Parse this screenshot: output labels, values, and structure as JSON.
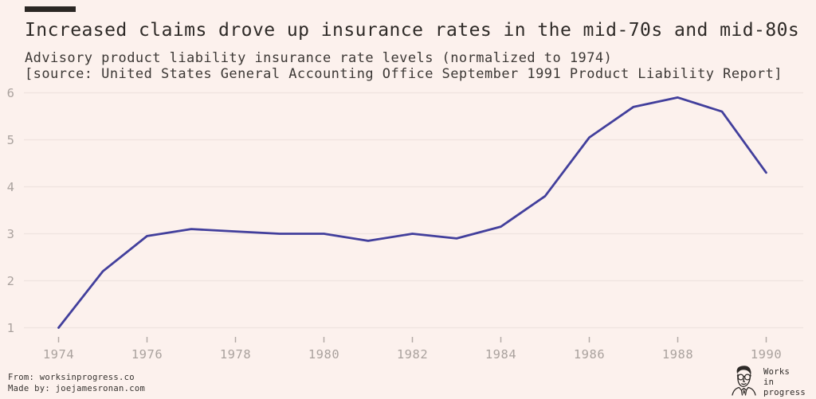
{
  "header": {
    "title": "Increased claims drove up insurance rates in the mid-70s and mid-80s",
    "subtitle": "Advisory product liability insurance rate levels (normalized to 1974)",
    "source": "[source: United States General Accounting Office September 1991 Product Liability Report]"
  },
  "footer": {
    "from": "From: worksinprogress.co",
    "made_by": "Made by: joejamesronan.com",
    "logo_lines": {
      "0": "Works",
      "1": "in",
      "2": "progress"
    }
  },
  "colors": {
    "background": "#fcf1ed",
    "text_dark": "#2e2a27",
    "text_muted": "#aaa29e",
    "tick_mark": "#b3aaa6",
    "gridline": "#f0e4e0",
    "line": "#423f9c",
    "accent_bar": "#2b2724"
  },
  "chart_data": {
    "type": "line",
    "title": "Increased claims drove up insurance rates in the mid-70s and mid-80s",
    "subtitle": "Advisory product liability insurance rate levels (normalized to 1974)",
    "source": "[source: United States General Accounting Office September 1991 Product Liability Report]",
    "series": [
      {
        "name": "Advisory product liability insurance rate level (normalized to 1974)",
        "x": [
          1974,
          1975,
          1976,
          1977,
          1978,
          1979,
          1980,
          1981,
          1982,
          1983,
          1984,
          1985,
          1986,
          1987,
          1988,
          1989,
          1990
        ],
        "values": [
          1.0,
          2.2,
          2.95,
          3.1,
          3.05,
          3.0,
          3.0,
          2.85,
          3.0,
          2.9,
          3.15,
          3.8,
          5.05,
          5.7,
          5.9,
          5.6,
          4.3
        ]
      }
    ],
    "xlabel": "",
    "ylabel": "",
    "xlim": [
      1974,
      1990
    ],
    "ylim": [
      1,
      6
    ],
    "xticks": [
      1974,
      1976,
      1978,
      1980,
      1982,
      1984,
      1986,
      1988,
      1990
    ],
    "yticks": [
      1,
      2,
      3,
      4,
      5,
      6
    ],
    "grid": "horizontal",
    "legend": "none",
    "line_color": "#423f9c"
  }
}
